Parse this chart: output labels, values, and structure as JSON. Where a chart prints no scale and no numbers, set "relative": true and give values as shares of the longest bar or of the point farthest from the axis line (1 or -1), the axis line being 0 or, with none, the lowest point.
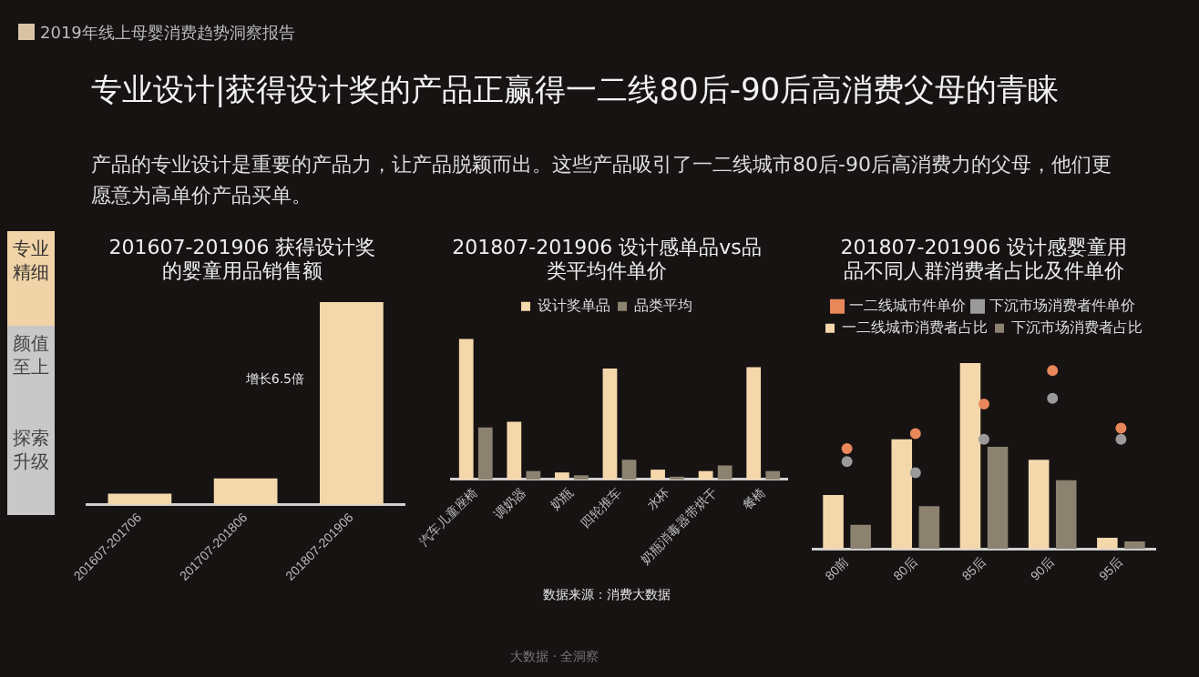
{
  "chart_data": [
    {
      "type": "other",
      "title": "专业设计|获得设计奖的产品正赢得一二线80后-90后高消费父母的青睐",
      "subtitle": "产品的专业设计是重要的产品力，让产品脱颖而出。这些产品吸引了一二线城市80后-90后高消费力的父母，他们更愿意为高单价产品买单。",
      "annotations": [
        "2019年线上母婴消费趋势洞察报告",
        "专业精细",
        "颜值至上",
        "探索升级",
        "大数据 · 全洞察"
      ]
    },
    {
      "type": "bar",
      "title": "201607-201906 获得设计奖的婴童用品销售额",
      "relative": true,
      "categories": [
        "201607-201706",
        "201707-201806",
        "201807-201906"
      ],
      "values": [
        0.055,
        0.13,
        1
      ],
      "color": "#f5d7ac",
      "annotations": [
        {
          "text": "增长6.5倍",
          "x": "201807-201906",
          "y": 0.6
        }
      ]
    },
    {
      "type": "bar",
      "title": "201807-201906 设计感单品vs品类平均件单价",
      "relative": true,
      "legend": "top",
      "categories": [
        "汽车儿童座椅",
        "调奶器",
        "奶瓶",
        "四轮推车",
        "水杯",
        "奶瓶消毒器带烘干",
        "餐椅"
      ],
      "series": [
        {
          "name": "设计奖单品",
          "color": "#f5d7ac",
          "values": [
            1,
            0.41,
            0.05,
            0.79,
            0.07,
            0.06,
            0.8
          ]
        },
        {
          "name": "品类平均",
          "color": "#8c8270",
          "values": [
            0.37,
            0.06,
            0.03,
            0.14,
            0.02,
            0.1,
            0.06
          ]
        }
      ],
      "annotations": [
        "数据来源：消费大数据"
      ]
    },
    {
      "type": "bar",
      "title": "201807-201906 设计感婴童用品不同人群消费者占比及件单价",
      "relative": true,
      "legend": "top",
      "categories": [
        "80前",
        "80后",
        "85后",
        "90后",
        "95后"
      ],
      "series": [
        {
          "name": "一二线城市消费者占比",
          "color": "#f5d7ac",
          "values": [
            0.29,
            0.59,
            1,
            0.48,
            0.06
          ]
        },
        {
          "name": "下沉市场消费者占比",
          "color": "#8c8270",
          "values": [
            0.13,
            0.23,
            0.55,
            0.37,
            0.04
          ]
        },
        {
          "name": "一二线城市件单价",
          "type": "scatter",
          "marker": "circle",
          "color": "#e8875a",
          "values": [
            0.54,
            0.62,
            0.78,
            0.96,
            0.65
          ]
        },
        {
          "name": "下沉市场消费者件单价",
          "type": "scatter",
          "marker": "circle",
          "color": "#9a9a9a",
          "values": [
            0.47,
            0.41,
            0.59,
            0.81,
            0.59
          ]
        }
      ]
    }
  ]
}
